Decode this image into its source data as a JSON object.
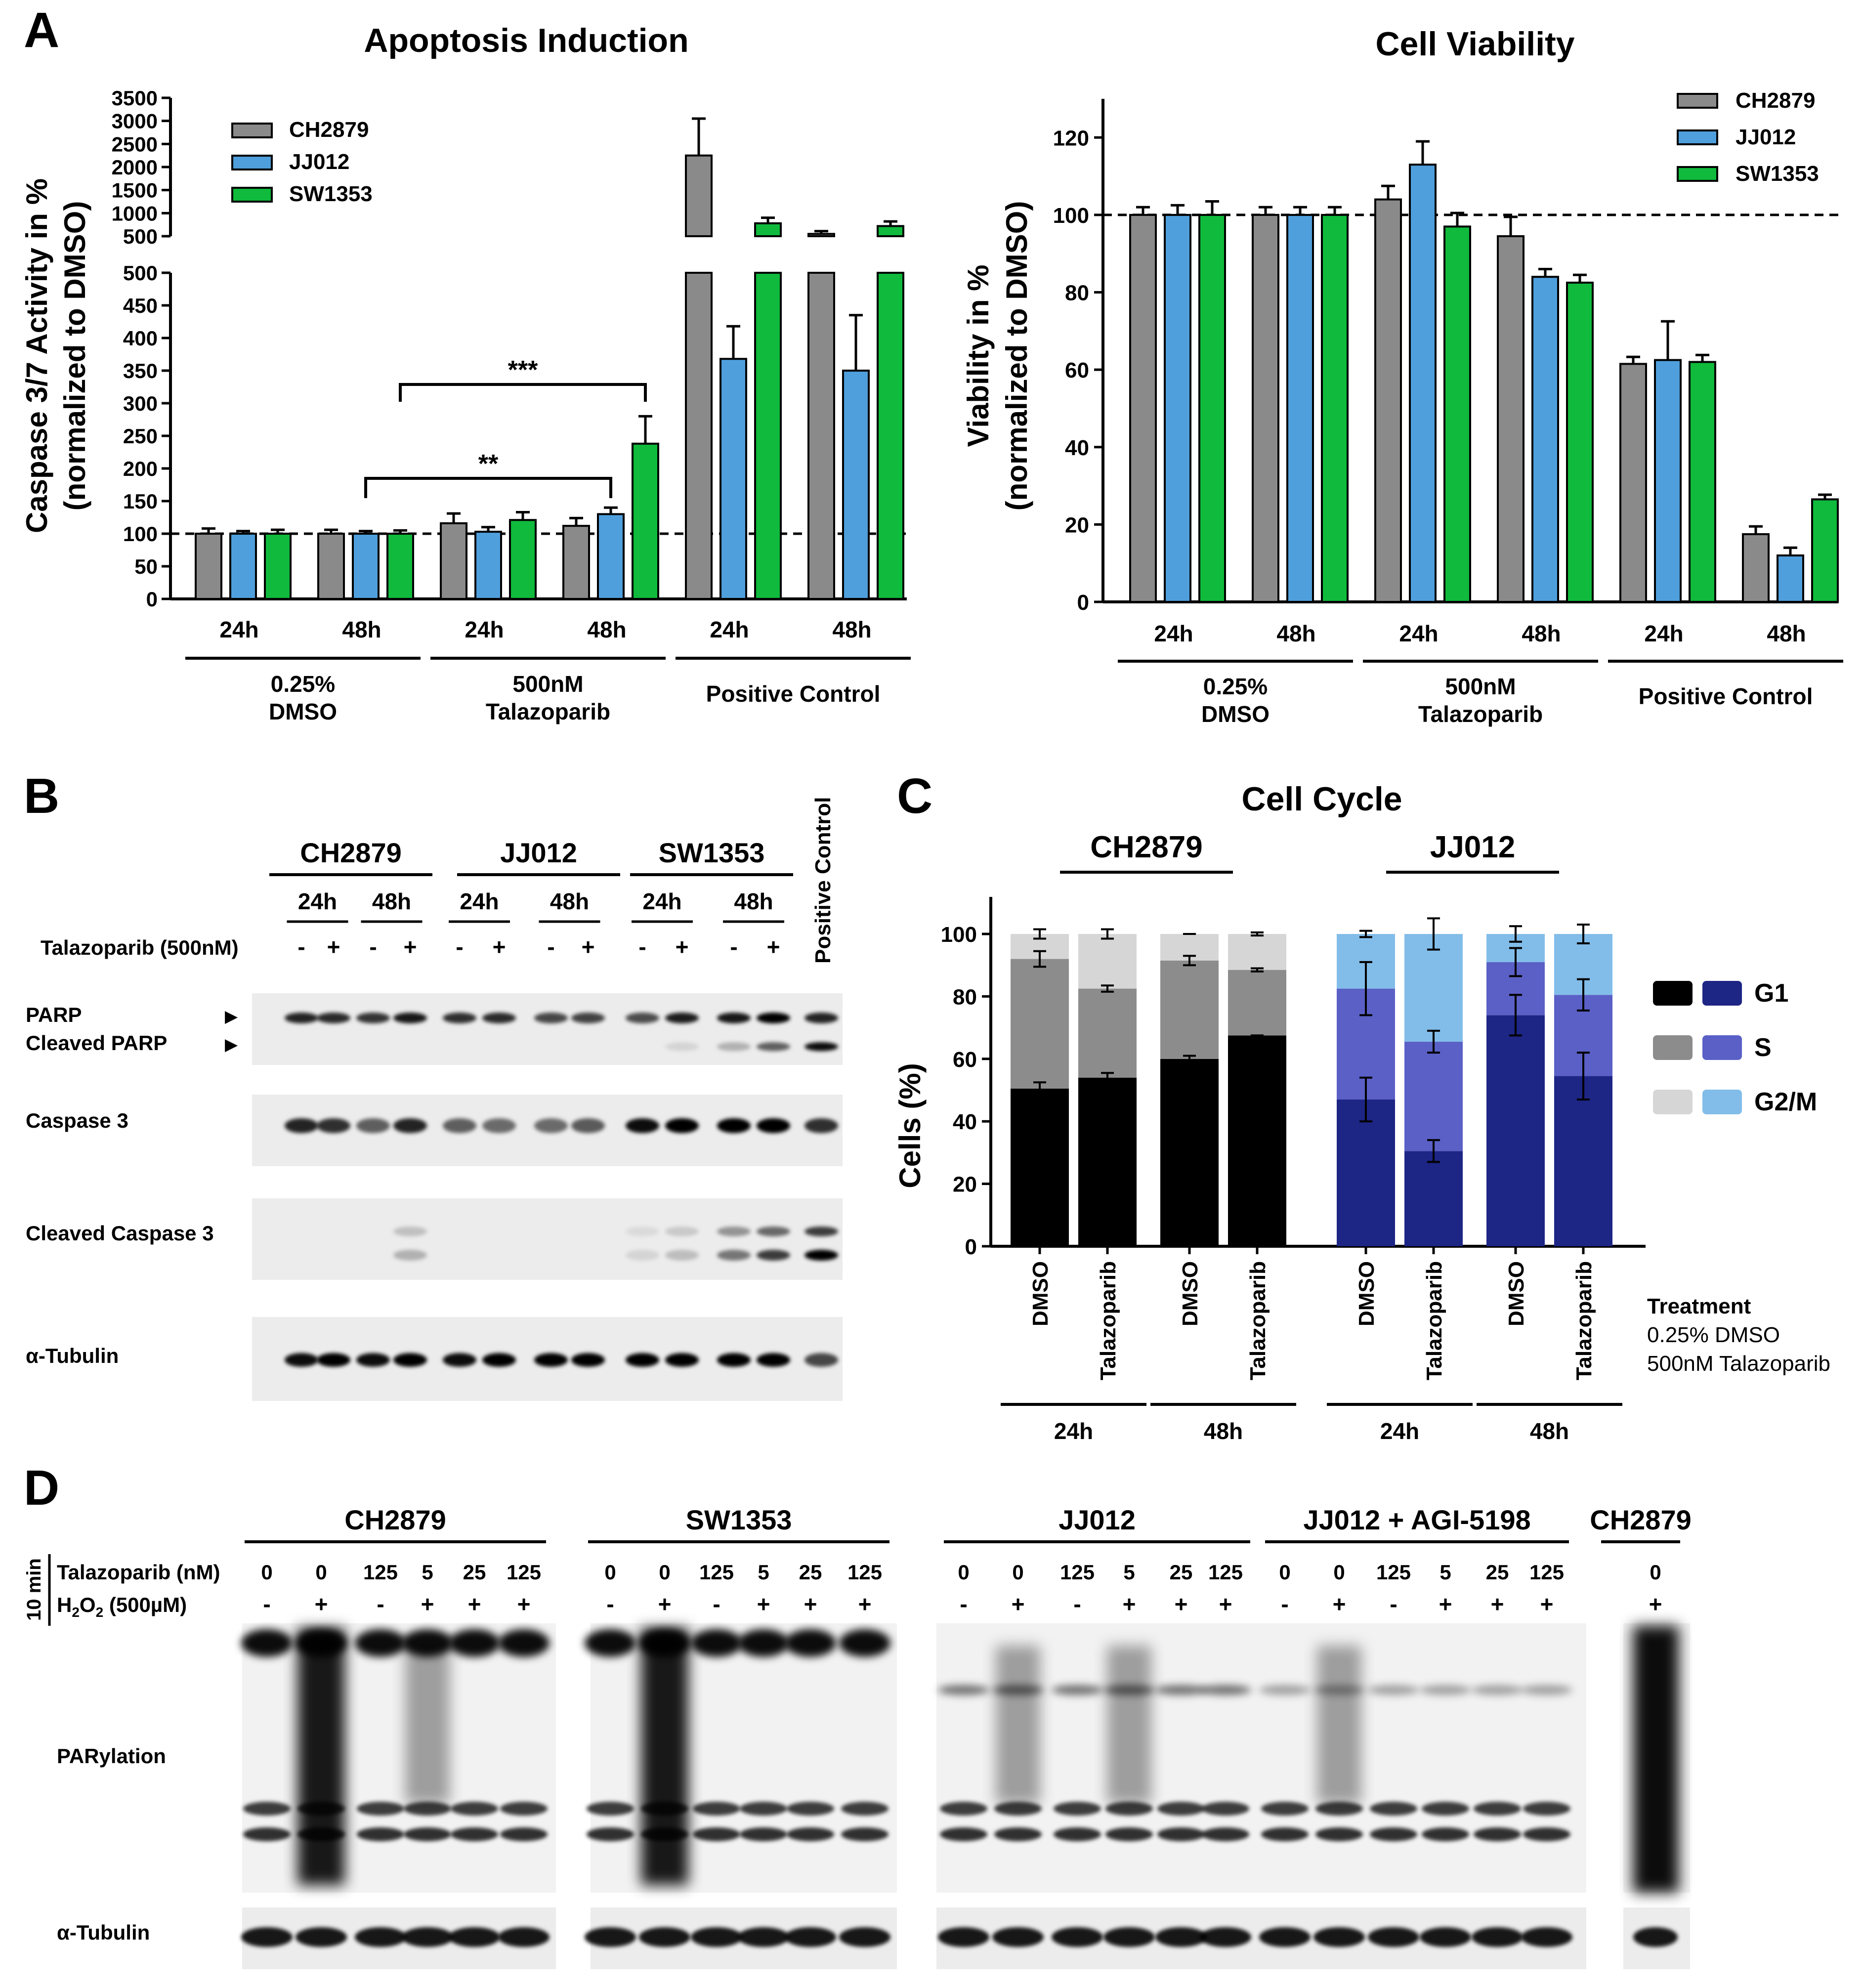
{
  "colors": {
    "ch2879": "#8a8a8a",
    "jj012": "#4f9fdc",
    "sw1353": "#0fba3c",
    "g1_ch": "#000000",
    "s_ch": "#8c8c8c",
    "g2_ch": "#d6d6d6",
    "g1_jj": "#1d2585",
    "s_jj": "#5a60c6",
    "g2_jj": "#82bde9"
  },
  "panel_letters": {
    "a": "A",
    "b": "B",
    "c": "C",
    "d": "D"
  },
  "chart_data": [
    {
      "type": "bar",
      "title": "Apoptosis Induction",
      "ylabel_line1": "Caspase 3/7 Activity in %",
      "ylabel_line2": "(normalized to DMSO)",
      "axis_break": true,
      "ylim_lower": [
        0,
        500
      ],
      "ylim_upper": [
        500,
        3500
      ],
      "yticks_lower": [
        "0",
        "50",
        "100",
        "150",
        "200",
        "250",
        "300",
        "350",
        "400",
        "450",
        "500"
      ],
      "yticks_upper": [
        "500",
        "1000",
        "1500",
        "2000",
        "2500",
        "3000",
        "3500"
      ],
      "reference_line": 100,
      "categories": [
        "24h",
        "48h",
        "24h",
        "48h",
        "24h",
        "48h"
      ],
      "groups": [
        "0.25%\nDMSO",
        "500nM\nTalazoparib",
        "Positive Control"
      ],
      "series": [
        {
          "name": "CH2879",
          "color_key": "ch2879",
          "values": [
            100,
            100,
            116,
            112,
            2250,
            550
          ],
          "errors": [
            8,
            6,
            15,
            12,
            800,
            60
          ]
        },
        {
          "name": "JJ012",
          "color_key": "jj012",
          "values": [
            100,
            100,
            103,
            130,
            368,
            350
          ],
          "errors": [
            4,
            4,
            7,
            10,
            50,
            85
          ]
        },
        {
          "name": "SW1353",
          "color_key": "sw1353",
          "values": [
            100,
            100,
            121,
            238,
            780,
            720
          ],
          "errors": [
            6,
            5,
            12,
            42,
            120,
            100
          ]
        }
      ],
      "annotations": [
        {
          "text": "***",
          "from": 1,
          "to": 3,
          "series": 2
        },
        {
          "text": "**",
          "from": 1,
          "to": 3,
          "series": 1
        }
      ]
    },
    {
      "type": "bar",
      "title": "Cell Viability",
      "ylabel_line1": "Viability in %",
      "ylabel_line2": "(normalized to DMSO)",
      "ylim": [
        0,
        130
      ],
      "yticks": [
        "0",
        "20",
        "40",
        "60",
        "80",
        "100",
        "120"
      ],
      "reference_line": 100,
      "categories": [
        "24h",
        "48h",
        "24h",
        "48h",
        "24h",
        "48h"
      ],
      "groups": [
        "0.25%\nDMSO",
        "500nM\nTalazoparib",
        "Positive Control"
      ],
      "series": [
        {
          "name": "CH2879",
          "color_key": "ch2879",
          "values": [
            100,
            100,
            104,
            94.5,
            61.5,
            17.5
          ],
          "errors": [
            2,
            2,
            3.5,
            5,
            1.8,
            2
          ]
        },
        {
          "name": "JJ012",
          "color_key": "jj012",
          "values": [
            100,
            100,
            113,
            84,
            62.5,
            12
          ],
          "errors": [
            2.5,
            2,
            6,
            2,
            10,
            2
          ]
        },
        {
          "name": "SW1353",
          "color_key": "sw1353",
          "values": [
            100,
            100,
            97,
            82.5,
            62,
            26.5
          ],
          "errors": [
            3.5,
            2,
            3.5,
            2,
            1.8,
            1.2
          ]
        }
      ]
    },
    {
      "type": "stacked_bar",
      "title": "Cell Cycle",
      "ylabel": "Cells (%)",
      "ylim": [
        0,
        110
      ],
      "yticks": [
        "0",
        "20",
        "40",
        "60",
        "80",
        "100"
      ],
      "groups": [
        "CH2879",
        "JJ012"
      ],
      "categories": [
        "DMSO",
        "Talazoparib",
        "DMSO",
        "Talazoparib",
        "DMSO",
        "Talazoparib",
        "DMSO",
        "Talazoparib"
      ],
      "time_labels": [
        "24h",
        "48h",
        "24h",
        "48h"
      ],
      "series": [
        {
          "name": "G1",
          "values": [
            50.5,
            54,
            60,
            67.5,
            47,
            30.5,
            74,
            54.5
          ],
          "errors": [
            2,
            1.5,
            1,
            0,
            7,
            3.5,
            6.5,
            7.5
          ]
        },
        {
          "name": "S",
          "values": [
            41.5,
            28.5,
            31.5,
            21,
            35.5,
            35,
            17,
            26
          ],
          "errors": [
            2.5,
            1,
            1.5,
            0.5,
            8.5,
            3.5,
            4.5,
            5
          ]
        },
        {
          "name": "G2/M",
          "values": [
            8,
            17.5,
            8.5,
            11.5,
            17.5,
            34.5,
            9,
            19.5
          ],
          "errors": [
            1.5,
            1.5,
            0,
            0.5,
            1,
            5,
            2.5,
            3
          ]
        }
      ],
      "legend_title": "Treatment",
      "legend_items": [
        "0.25% DMSO",
        "500nM Talazoparib"
      ]
    }
  ],
  "blot_b": {
    "cell_lines": [
      "CH2879",
      "JJ012",
      "SW1353"
    ],
    "times": [
      "24h",
      "48h",
      "24h",
      "48h",
      "24h",
      "48h"
    ],
    "treatment_label": "Talazoparib (500nM)",
    "signs": [
      "-",
      "+",
      "-",
      "+",
      "-",
      "+",
      "-",
      "+",
      "-",
      "+",
      "-",
      "+"
    ],
    "positive_control": "Positive Control",
    "rows": [
      "PARP",
      "Cleaved PARP",
      "Caspase 3",
      "Cleaved Caspase 3",
      "α-Tubulin"
    ],
    "arrow": "▶"
  },
  "blot_d": {
    "groups": [
      "CH2879",
      "SW1353",
      "JJ012",
      "JJ012 + AGI-5198",
      "CH2879"
    ],
    "time_label": "10 min",
    "talazoparib_label": "Talazoparib (nM)",
    "h2o2_label": "H",
    "h2o2_sub1": "2",
    "h2o2_o": "O",
    "h2o2_sub2": "2",
    "h2o2_conc": " (500µM)",
    "doses": [
      "0",
      "0",
      "125",
      "5",
      "25",
      "125"
    ],
    "h2o2": [
      "-",
      "+",
      "-",
      "+",
      "+",
      "+"
    ],
    "last_dose": "0",
    "last_h2o2": "+",
    "rows": [
      "PARylation",
      "α-Tubulin"
    ]
  }
}
